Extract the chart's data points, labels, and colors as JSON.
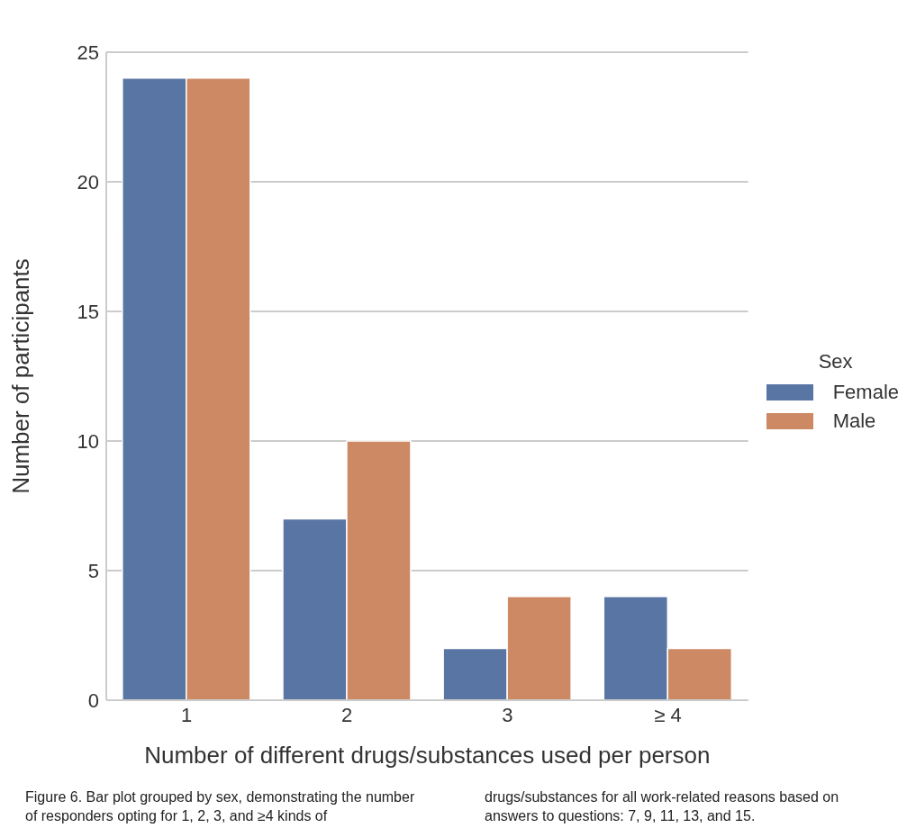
{
  "chart_data": {
    "type": "bar",
    "xlabel": "Number of different drugs/substances used per person",
    "ylabel": "Number of participants",
    "legend_title": "Sex",
    "categories": [
      "1",
      "2",
      "3",
      "≥ 4"
    ],
    "series": [
      {
        "name": "Female",
        "color": "#5975a4",
        "values": [
          24,
          7,
          2,
          4
        ]
      },
      {
        "name": "Male",
        "color": "#cc8963",
        "values": [
          24,
          10,
          4,
          2
        ]
      }
    ],
    "ylim": [
      0,
      25
    ],
    "yticks": [
      0,
      5,
      10,
      15,
      20,
      25
    ],
    "grid": "y",
    "legend": "right",
    "annotations": [
      "Figure 6. Bar plot grouped by sex, demonstrating the number of responders opting for 1, 2, 3, and ≥4 kinds of drugs/substances for all work-related reasons based on answers to questions: 7, 9, 11, 13, and 15."
    ]
  }
}
